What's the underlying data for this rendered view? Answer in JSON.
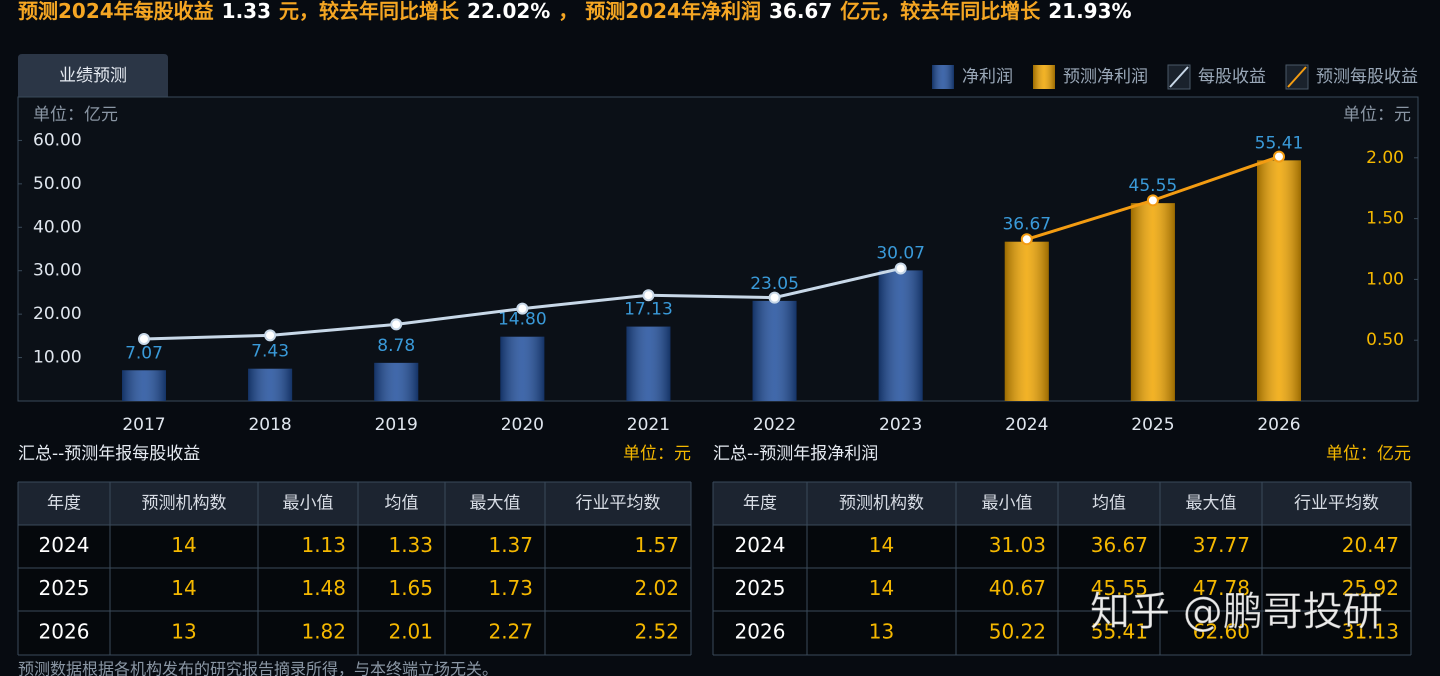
{
  "header": {
    "parts": [
      "预测2024年每股收益",
      "1.33",
      "元，较去年同比增长",
      "22.02%",
      "， 预测2024年净利润",
      "36.67",
      "亿元，较去年同比增长",
      "21.93%"
    ]
  },
  "tab": "业绩预测",
  "chart_data": {
    "type": "combo",
    "unit_left": "单位：亿元",
    "unit_right": "单位：元",
    "categories": [
      "2017",
      "2018",
      "2019",
      "2020",
      "2021",
      "2022",
      "2023",
      "2024",
      "2025",
      "2026"
    ],
    "series": [
      {
        "name": "净利润",
        "type": "bar",
        "color": "#1f4e9c",
        "values": [
          7.07,
          7.43,
          8.78,
          14.8,
          17.13,
          23.05,
          30.07,
          null,
          null,
          null
        ],
        "value_labels": [
          "7.07",
          "7.43",
          "8.78",
          "14.80",
          "17.13",
          "23.05",
          "30.07",
          null,
          null,
          null
        ]
      },
      {
        "name": "预测净利润",
        "type": "bar",
        "color": "#f0a500",
        "values": [
          null,
          null,
          null,
          null,
          null,
          null,
          null,
          36.67,
          45.55,
          55.41
        ],
        "value_labels": [
          null,
          null,
          null,
          null,
          null,
          null,
          null,
          "36.67",
          "45.55",
          "55.41"
        ]
      },
      {
        "name": "每股收益",
        "type": "line",
        "axis": "y2",
        "color": "#c8d8e8",
        "values": [
          0.51,
          0.54,
          0.63,
          0.76,
          0.87,
          0.85,
          1.09,
          null,
          null,
          null
        ]
      },
      {
        "name": "预测每股收益",
        "type": "line",
        "axis": "y2",
        "color": "#f39c12",
        "values": [
          null,
          null,
          null,
          null,
          null,
          null,
          null,
          1.33,
          1.65,
          2.01
        ]
      }
    ],
    "ylim": [
      0,
      70
    ],
    "yticks": [
      {
        "value": 10,
        "label": "10.00"
      },
      {
        "value": 20,
        "label": "20.00"
      },
      {
        "value": 30,
        "label": "30.00"
      },
      {
        "value": 40,
        "label": "40.00"
      },
      {
        "value": 50,
        "label": "50.00"
      },
      {
        "value": 60,
        "label": "60.00"
      }
    ],
    "y2lim": [
      0,
      2.5
    ],
    "y2ticks": [
      {
        "value": 0.5,
        "label": "0.50"
      },
      {
        "value": 1,
        "label": "1.00"
      },
      {
        "value": 1.5,
        "label": "1.50"
      },
      {
        "value": 2,
        "label": "2.00"
      }
    ],
    "grid": false,
    "legend": "top-right"
  },
  "tables": [
    {
      "title": "汇总--预测年报每股收益",
      "unit": "单位：元",
      "columns": [
        "年度",
        "预测机构数",
        "最小值",
        "均值",
        "最大值",
        "行业平均数"
      ],
      "rows": [
        [
          "2024",
          "14",
          "1.13",
          "1.33",
          "1.37",
          "1.57"
        ],
        [
          "2025",
          "14",
          "1.48",
          "1.65",
          "1.73",
          "2.02"
        ],
        [
          "2026",
          "13",
          "1.82",
          "2.01",
          "2.27",
          "2.52"
        ]
      ]
    },
    {
      "title": "汇总--预测年报净利润",
      "unit": "单位：亿元",
      "columns": [
        "年度",
        "预测机构数",
        "最小值",
        "均值",
        "最大值",
        "行业平均数"
      ],
      "rows": [
        [
          "2024",
          "14",
          "31.03",
          "36.67",
          "37.77",
          "20.47"
        ],
        [
          "2025",
          "14",
          "40.67",
          "45.55",
          "47.78",
          "25.92"
        ],
        [
          "2026",
          "13",
          "50.22",
          "55.41",
          "62.60",
          "31.13"
        ]
      ]
    }
  ],
  "footnote": "预测数据根据各机构发布的研究报告摘录所得，与本终端立场无关。",
  "watermark": "知乎 @鹏哥投研"
}
